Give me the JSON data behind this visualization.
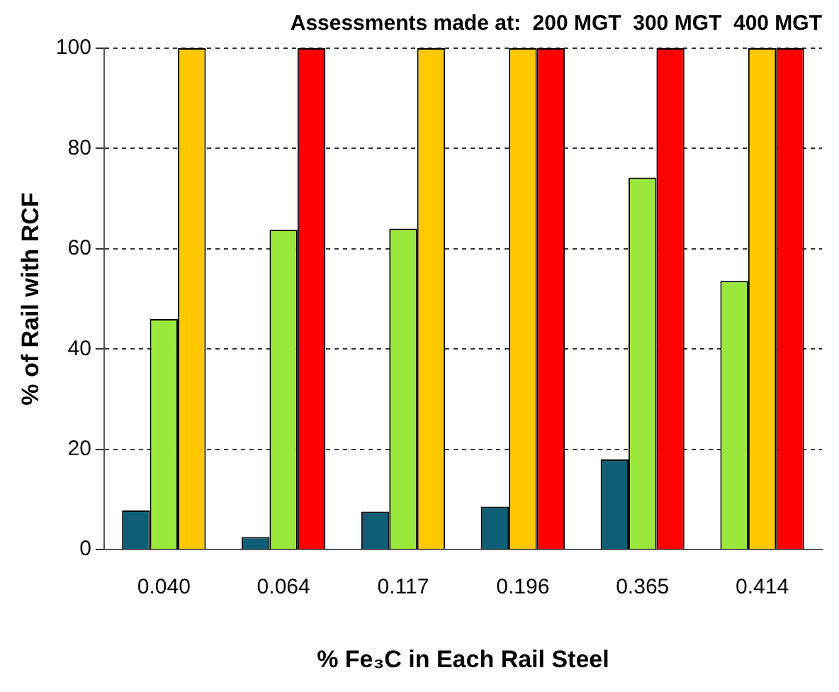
{
  "chart_data": {
    "type": "bar",
    "title": "Assessments made at:  200 MGT  300 MGT  400 MGT",
    "xlabel": "% Fe₃C in Each Rail Steel",
    "ylabel": "% of Rail with RCF",
    "categories": [
      "0.040",
      "0.064",
      "0.117",
      "0.196",
      "0.365",
      "0.414"
    ],
    "series": [
      {
        "color": "#0e5f75",
        "values": [
          7.8,
          2.5,
          7.6,
          8.6,
          18,
          null
        ]
      },
      {
        "color": "#9be83c",
        "values": [
          46,
          63.8,
          64,
          null,
          74.2,
          53.6
        ]
      },
      {
        "color": "#ffc800",
        "values": [
          100,
          null,
          100,
          100,
          null,
          100
        ]
      },
      {
        "color": "#ff0000",
        "values": [
          null,
          100,
          null,
          100,
          100,
          100
        ]
      }
    ],
    "ylim": [
      0,
      100
    ],
    "yticks": [
      0,
      20,
      40,
      60,
      80,
      100
    ],
    "grid": "y",
    "legend": false
  }
}
